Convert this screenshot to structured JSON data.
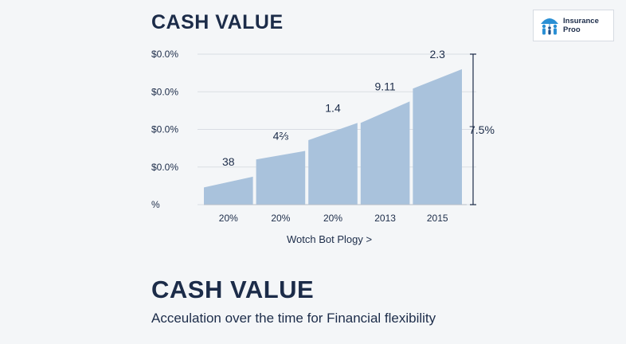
{
  "header": {
    "title": "CASH VALUE"
  },
  "logo": {
    "line1": "Insurance",
    "line2": "Proo"
  },
  "chart_data": {
    "type": "area",
    "y_tick_labels": [
      "$0.0%",
      "$0.0%",
      "$0.0%",
      "$0.0%",
      "%"
    ],
    "categories": [
      "20%",
      "20%",
      "20%",
      "2013",
      "2015"
    ],
    "segments": [
      {
        "start": 0.8,
        "end": 1.3,
        "label": "38"
      },
      {
        "start": 2.1,
        "end": 2.5,
        "label": "4⅔"
      },
      {
        "start": 3.0,
        "end": 3.8,
        "label": "1.4"
      },
      {
        "start": 3.8,
        "end": 4.8,
        "label": "9.11"
      },
      {
        "start": 5.4,
        "end": 6.3,
        "label": "2.3"
      }
    ],
    "ylim": [
      0,
      7
    ],
    "right_annotation": "7.5%",
    "grid": true,
    "colors": {
      "area": "#a9c2dc",
      "text": "#1c2c49",
      "grid": "#d9dde3"
    }
  },
  "cta": {
    "label": "Wotch Bot Plogy >"
  },
  "footer": {
    "title": "CASH VALUE",
    "subtitle": "Acceulation over the time for Financial flexibility"
  }
}
